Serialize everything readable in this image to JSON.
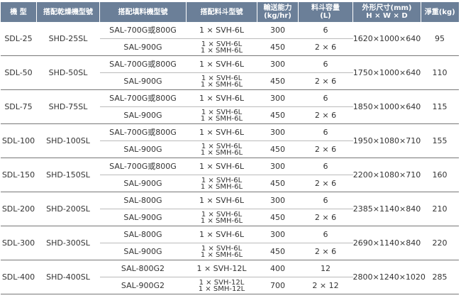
{
  "header": {
    "columns": [
      [
        "機 型"
      ],
      [
        "搭配乾燥機型號"
      ],
      [
        "搭配填料機型號"
      ],
      [
        "搭配料斗型號"
      ],
      [
        "輸送能力",
        "(kg/hr)"
      ],
      [
        "料斗容量",
        "(L)"
      ],
      [
        "外形尺寸(mm)",
        "H × W × D"
      ],
      [
        "淨重(kg)"
      ]
    ]
  },
  "table": {
    "rows": [
      {
        "model": "SDL-25",
        "dryer": "SHD-25SL",
        "options": [
          {
            "loader": "SAL-700G或800G",
            "hopper": [
              "1 × SVH-6L"
            ],
            "capacity": 300,
            "volume": "6"
          },
          {
            "loader": "SAL-900G",
            "hopper": [
              "1 × SVH-6L",
              "1 × SMH-6L"
            ],
            "capacity": 450,
            "volume": "2 × 6"
          }
        ],
        "dimensions": "1620×1000×640",
        "weight": 95
      },
      {
        "model": "SDL-50",
        "dryer": "SHD-50SL",
        "options": [
          {
            "loader": "SAL-700G或800G",
            "hopper": [
              "1 × SVH-6L"
            ],
            "capacity": 300,
            "volume": "6"
          },
          {
            "loader": "SAL-900G",
            "hopper": [
              "1 × SVH-6L",
              "1 × SMH-6L"
            ],
            "capacity": 450,
            "volume": "2 × 6"
          }
        ],
        "dimensions": "1750×1000×640",
        "weight": 110
      },
      {
        "model": "SDL-75",
        "dryer": "SHD-75SL",
        "options": [
          {
            "loader": "SAL-700G或800G",
            "hopper": [
              "1 × SVH-6L"
            ],
            "capacity": 300,
            "volume": "6"
          },
          {
            "loader": "SAL-900G",
            "hopper": [
              "1 × SVH-6L",
              "1 × SMH-6L"
            ],
            "capacity": 450,
            "volume": "2 × 6"
          }
        ],
        "dimensions": "1850×1000×640",
        "weight": 115
      },
      {
        "model": "SDL-100",
        "dryer": "SHD-100SL",
        "options": [
          {
            "loader": "SAL-700G或800G",
            "hopper": [
              "1 × SVH-6L"
            ],
            "capacity": 300,
            "volume": "6"
          },
          {
            "loader": "SAL-900G",
            "hopper": [
              "1 × SVH-6L",
              "1 × SMH-6L"
            ],
            "capacity": 450,
            "volume": "2 × 6"
          }
        ],
        "dimensions": "1950×1080×710",
        "weight": 155
      },
      {
        "model": "SDL-150",
        "dryer": "SHD-150SL",
        "options": [
          {
            "loader": "SAL-700G或800G",
            "hopper": [
              "1 × SVH-6L"
            ],
            "capacity": 300,
            "volume": "6"
          },
          {
            "loader": "SAL-900G",
            "hopper": [
              "1 × SVH-6L",
              "1 × SMH-6L"
            ],
            "capacity": 450,
            "volume": "2 × 6"
          }
        ],
        "dimensions": "2200×1080×710",
        "weight": 160
      },
      {
        "model": "SDL-200",
        "dryer": "SHD-200SL",
        "options": [
          {
            "loader": "SAL-800G",
            "hopper": [
              "1 × SVH-6L"
            ],
            "capacity": 300,
            "volume": "6"
          },
          {
            "loader": "SAL-900G",
            "hopper": [
              "1 × SVH-6L",
              "1 × SMH-6L"
            ],
            "capacity": 450,
            "volume": "2 × 6"
          }
        ],
        "dimensions": "2385×1140×840",
        "weight": 210
      },
      {
        "model": "SDL-300",
        "dryer": "SHD-300SL",
        "options": [
          {
            "loader": "SAL-800G",
            "hopper": [
              "1 × SVH-6L"
            ],
            "capacity": 300,
            "volume": "6"
          },
          {
            "loader": "SAL-900G",
            "hopper": [
              "1 × SVH-6L",
              "1 × SMH-6L"
            ],
            "capacity": 450,
            "volume": "2 × 6"
          }
        ],
        "dimensions": "2690×1140×840",
        "weight": 220
      },
      {
        "model": "SDL-400",
        "dryer": "SHD-400SL",
        "options": [
          {
            "loader": "SAL-800G2",
            "hopper": [
              "1 × SVH-12L"
            ],
            "capacity": 400,
            "volume": "12"
          },
          {
            "loader": "SAL-900G2",
            "hopper": [
              "1 × SVH-12L",
              "1 × SMH-12L"
            ],
            "capacity": 700,
            "volume": "2 × 12"
          }
        ],
        "dimensions": "2800×1240×1020",
        "weight": 285
      }
    ]
  }
}
